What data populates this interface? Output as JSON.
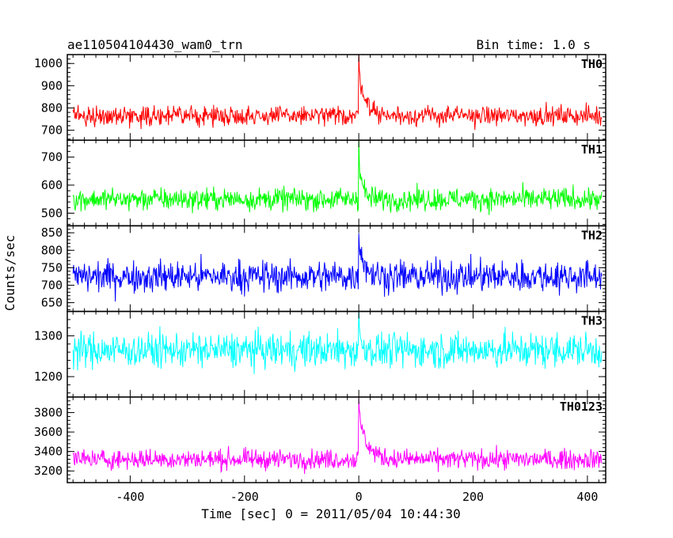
{
  "header": {
    "title": "ae110504104430_wam0_trn",
    "bin_time": "Bin time: 1.0 s"
  },
  "chart_data": {
    "type": "line",
    "xlabel": "Time [sec] 0 = 2011/05/04 10:44:30",
    "ylabel": "Counts/sec",
    "xlim": [
      -510,
      432
    ],
    "x_range_data": [
      -500,
      425
    ],
    "x_ticks": [
      -400,
      -200,
      0,
      200,
      400
    ],
    "panels": [
      {
        "name": "TH0",
        "color": "#ff0000",
        "ylim": [
          655,
          1040
        ],
        "y_ticks": [
          700,
          800,
          900,
          1000
        ],
        "baseline": 765,
        "noise": 30,
        "peak": {
          "x": 0,
          "value": 1040,
          "decay": 12
        }
      },
      {
        "name": "TH1",
        "color": "#00ff00",
        "ylim": [
          455,
          760
        ],
        "y_ticks": [
          500,
          600,
          700
        ],
        "baseline": 550,
        "noise": 28,
        "peak": {
          "x": 0,
          "value": 760,
          "decay": 6
        }
      },
      {
        "name": "TH2",
        "color": "#0000ff",
        "ylim": [
          625,
          870
        ],
        "y_ticks": [
          650,
          700,
          750,
          800,
          850
        ],
        "baseline": 725,
        "noise": 32,
        "peak": {
          "x": 0,
          "value": 865,
          "decay": 10
        }
      },
      {
        "name": "TH3",
        "color": "#00ffff",
        "ylim": [
          1150,
          1360
        ],
        "y_ticks": [
          1200,
          1300
        ],
        "baseline": 1265,
        "noise": 30,
        "peak": {
          "x": 0,
          "value": 1340,
          "decay": 5
        }
      },
      {
        "name": "TH0123",
        "color": "#ff00ff",
        "ylim": [
          3080,
          3960
        ],
        "y_ticks": [
          3200,
          3400,
          3600,
          3800
        ],
        "baseline": 3320,
        "noise": 70,
        "peak": {
          "x": 0,
          "value": 3950,
          "decay": 14
        }
      }
    ]
  }
}
